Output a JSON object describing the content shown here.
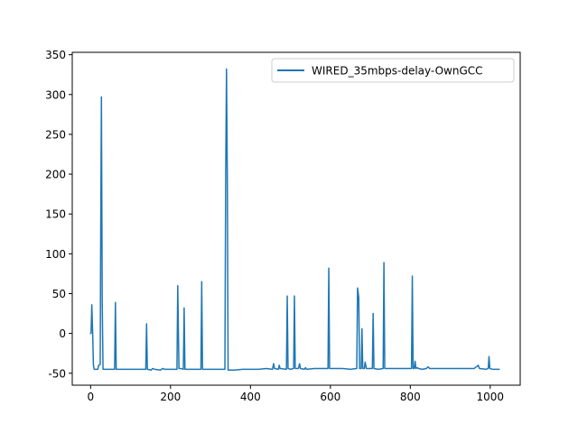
{
  "chart_data": {
    "type": "line",
    "title": "",
    "xlabel": "",
    "ylabel": "",
    "xlim": [
      -46,
      1075
    ],
    "ylim": [
      -65,
      353
    ],
    "xticks": [
      0,
      200,
      400,
      600,
      800,
      1000
    ],
    "yticks": [
      -50,
      0,
      50,
      100,
      150,
      200,
      250,
      300,
      350
    ],
    "grid": false,
    "legend_position": "top-right",
    "series": [
      {
        "name": "WIRED_35mbps-delay-OwnGCC",
        "color": "#1f77b4",
        "points": [
          [
            0,
            0
          ],
          [
            1,
            0
          ],
          [
            3,
            36
          ],
          [
            5,
            2
          ],
          [
            7,
            -40
          ],
          [
            9,
            -45
          ],
          [
            18,
            -45
          ],
          [
            20,
            -40
          ],
          [
            24,
            -39
          ],
          [
            25,
            100
          ],
          [
            27,
            297
          ],
          [
            29,
            40
          ],
          [
            31,
            -45
          ],
          [
            60,
            -45
          ],
          [
            62,
            39
          ],
          [
            64,
            -45
          ],
          [
            138,
            -45
          ],
          [
            140,
            12
          ],
          [
            142,
            -45
          ],
          [
            152,
            -46
          ],
          [
            155,
            -44
          ],
          [
            160,
            -45
          ],
          [
            175,
            -46
          ],
          [
            180,
            -44
          ],
          [
            185,
            -45
          ],
          [
            195,
            -45
          ],
          [
            210,
            -45
          ],
          [
            216,
            -45
          ],
          [
            218,
            60
          ],
          [
            221,
            -44
          ],
          [
            225,
            -44
          ],
          [
            232,
            -45
          ],
          [
            234,
            32
          ],
          [
            236,
            -45
          ],
          [
            240,
            -45
          ],
          [
            260,
            -45
          ],
          [
            276,
            -45
          ],
          [
            278,
            65
          ],
          [
            280,
            -45
          ],
          [
            310,
            -45
          ],
          [
            336,
            -45
          ],
          [
            338,
            200
          ],
          [
            340,
            332
          ],
          [
            342,
            200
          ],
          [
            344,
            -46
          ],
          [
            360,
            -46
          ],
          [
            380,
            -45
          ],
          [
            400,
            -45
          ],
          [
            420,
            -45
          ],
          [
            440,
            -44
          ],
          [
            455,
            -45
          ],
          [
            458,
            -38
          ],
          [
            460,
            -44
          ],
          [
            470,
            -45
          ],
          [
            472,
            -40
          ],
          [
            474,
            -44
          ],
          [
            490,
            -45
          ],
          [
            492,
            47
          ],
          [
            494,
            -44
          ],
          [
            500,
            -45
          ],
          [
            508,
            -44
          ],
          [
            510,
            47
          ],
          [
            512,
            -44
          ],
          [
            520,
            -44
          ],
          [
            523,
            -38
          ],
          [
            525,
            -44
          ],
          [
            535,
            -45
          ],
          [
            538,
            -43
          ],
          [
            540,
            -45
          ],
          [
            560,
            -44
          ],
          [
            580,
            -44
          ],
          [
            594,
            -44
          ],
          [
            596,
            82
          ],
          [
            598,
            -44
          ],
          [
            610,
            -44
          ],
          [
            630,
            -44
          ],
          [
            650,
            -45
          ],
          [
            666,
            -44
          ],
          [
            668,
            57
          ],
          [
            671,
            45
          ],
          [
            673,
            -44
          ],
          [
            677,
            -44
          ],
          [
            679,
            6
          ],
          [
            681,
            -44
          ],
          [
            685,
            -44
          ],
          [
            687,
            -36
          ],
          [
            690,
            -44
          ],
          [
            705,
            -44
          ],
          [
            707,
            25
          ],
          [
            709,
            -44
          ],
          [
            720,
            -45
          ],
          [
            732,
            -44
          ],
          [
            734,
            89
          ],
          [
            736,
            -44
          ],
          [
            760,
            -44
          ],
          [
            780,
            -44
          ],
          [
            800,
            -44
          ],
          [
            803,
            -44
          ],
          [
            805,
            72
          ],
          [
            807,
            -44
          ],
          [
            810,
            -44
          ],
          [
            812,
            -35
          ],
          [
            814,
            -44
          ],
          [
            818,
            -43
          ],
          [
            820,
            -44
          ],
          [
            830,
            -45
          ],
          [
            840,
            -44
          ],
          [
            845,
            -42
          ],
          [
            848,
            -44
          ],
          [
            880,
            -44
          ],
          [
            920,
            -44
          ],
          [
            960,
            -44
          ],
          [
            970,
            -40
          ],
          [
            973,
            -44
          ],
          [
            990,
            -45
          ],
          [
            995,
            -44
          ],
          [
            997,
            -29
          ],
          [
            999,
            -44
          ],
          [
            1005,
            -45
          ],
          [
            1015,
            -45
          ],
          [
            1022,
            -45
          ]
        ]
      }
    ]
  }
}
